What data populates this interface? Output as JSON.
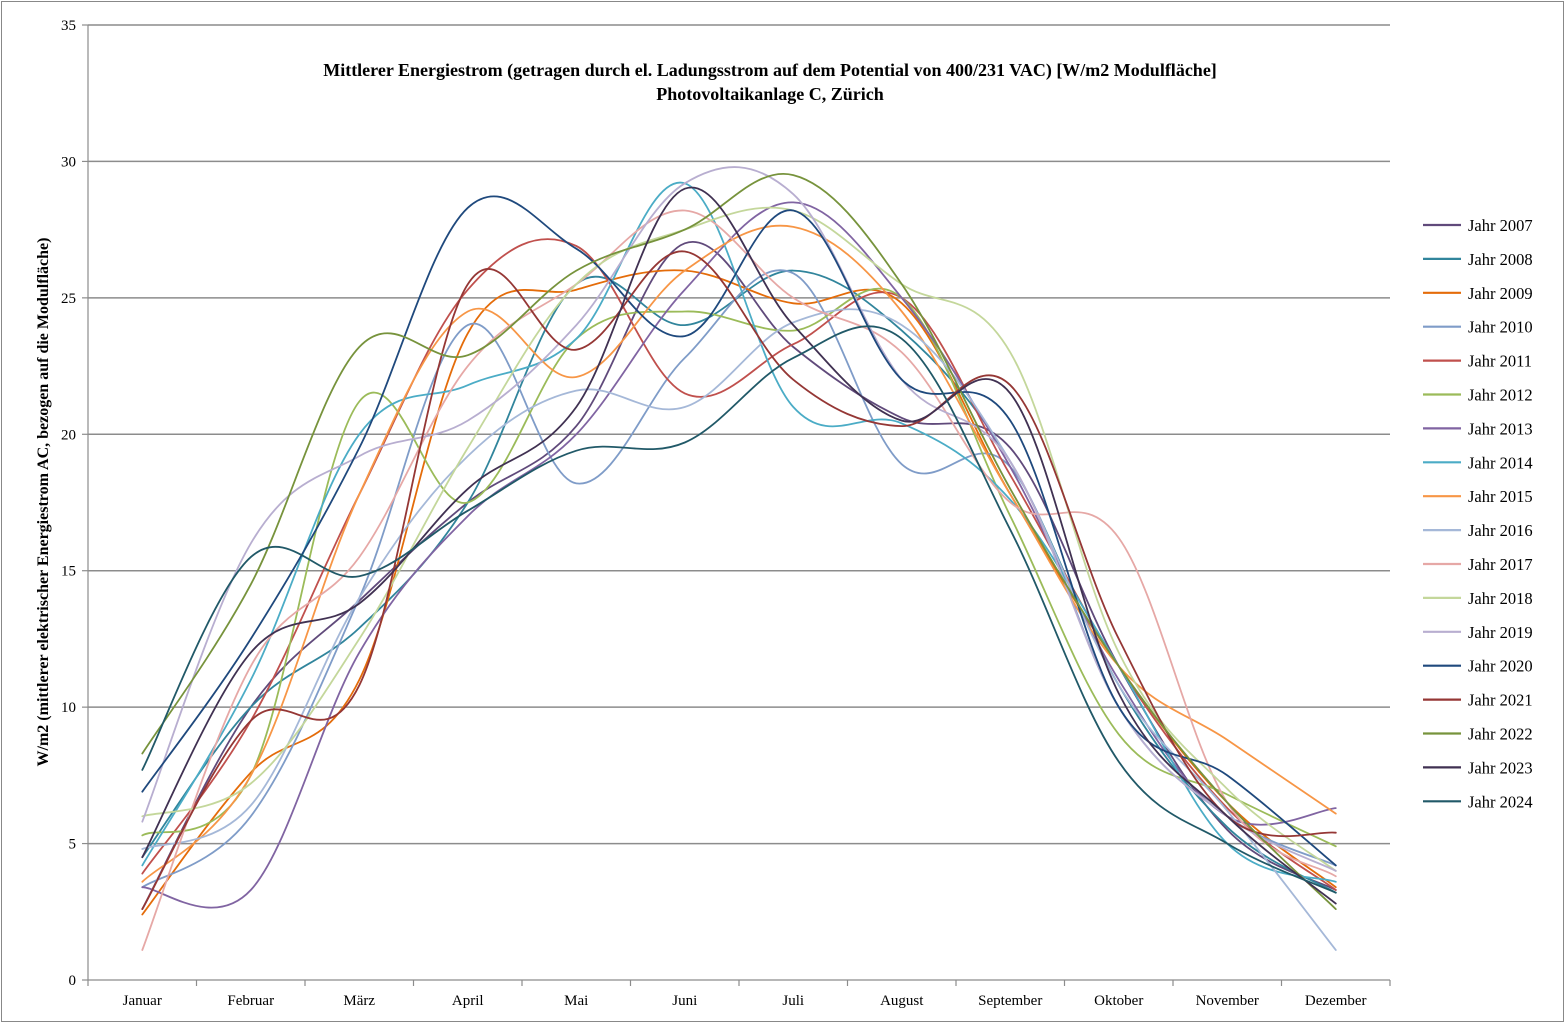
{
  "chart_data": {
    "type": "line",
    "title": "Mittlerer Energiestrom (getragen durch el. Ladungsstrom auf dem Potential von 400/231 VAC) [W/m2 Modulfläche]",
    "subtitle": "Photovoltaikanlage C, Zürich",
    "xlabel": "",
    "ylabel": "W/m2 (mittlerer elektrischer Energiestrom AC, bezogen auf die Modulfläche)",
    "ylim": [
      0,
      35
    ],
    "yticks": [
      "0",
      "5",
      "10",
      "15",
      "20",
      "25",
      "30",
      "35"
    ],
    "grid": true,
    "legend_position": "right",
    "categories": [
      "Januar",
      "Februar",
      "März",
      "April",
      "Mai",
      "Juni",
      "Juli",
      "August",
      "September",
      "Oktober",
      "November",
      "Dezember"
    ],
    "series": [
      {
        "name": "Jahr 2007",
        "color": "#604a7b",
        "values": [
          2.6,
          10.0,
          13.9,
          17.5,
          20.3,
          27.0,
          23.2,
          20.6,
          19.5,
          11.5,
          5.5,
          3.3
        ]
      },
      {
        "name": "Jahr 2008",
        "color": "#31859c",
        "values": [
          4.5,
          10.0,
          12.9,
          17.5,
          25.5,
          24.0,
          26.0,
          23.8,
          19.0,
          10.8,
          5.6,
          3.2
        ]
      },
      {
        "name": "Jahr 2009",
        "color": "#e46c0a",
        "values": [
          2.4,
          7.6,
          11.0,
          23.7,
          25.3,
          26.0,
          24.8,
          24.8,
          17.8,
          11.5,
          6.5,
          3.4
        ]
      },
      {
        "name": "Jahr 2010",
        "color": "#7f9cc8",
        "values": [
          3.4,
          6.0,
          14.0,
          24.0,
          18.2,
          22.8,
          25.9,
          18.9,
          18.8,
          10.0,
          6.0,
          4.2
        ]
      },
      {
        "name": "Jahr 2011",
        "color": "#c0504d",
        "values": [
          3.9,
          9.5,
          17.8,
          25.3,
          26.9,
          21.5,
          23.3,
          25.0,
          18.5,
          11.5,
          6.3,
          3.3
        ]
      },
      {
        "name": "Jahr 2012",
        "color": "#9bbb59",
        "values": [
          5.3,
          7.5,
          21.2,
          17.5,
          23.5,
          24.5,
          23.8,
          25.0,
          17.0,
          9.0,
          6.8,
          4.9
        ]
      },
      {
        "name": "Jahr 2013",
        "color": "#8064a2",
        "values": [
          3.4,
          3.3,
          12.0,
          17.0,
          20.0,
          25.3,
          28.5,
          25.0,
          18.8,
          11.0,
          6.0,
          6.3
        ]
      },
      {
        "name": "Jahr 2014",
        "color": "#4bacc6",
        "values": [
          4.2,
          11.0,
          20.0,
          21.8,
          23.5,
          29.2,
          21.0,
          20.4,
          17.6,
          11.5,
          5.0,
          3.6
        ]
      },
      {
        "name": "Jahr 2015",
        "color": "#f79646",
        "values": [
          3.6,
          7.5,
          17.8,
          24.5,
          22.1,
          26.0,
          27.6,
          24.5,
          17.8,
          11.5,
          8.8,
          6.1
        ]
      },
      {
        "name": "Jahr 2016",
        "color": "#a5b8d8",
        "values": [
          4.8,
          6.4,
          14.0,
          19.2,
          21.6,
          21.0,
          24.1,
          24.0,
          19.0,
          10.8,
          6.2,
          1.1
        ]
      },
      {
        "name": "Jahr 2017",
        "color": "#e6a8a6",
        "values": [
          1.1,
          11.5,
          15.5,
          22.5,
          25.5,
          28.2,
          25.0,
          23.0,
          17.5,
          16.2,
          6.5,
          3.8
        ]
      },
      {
        "name": "Jahr 2018",
        "color": "#c4d79b",
        "values": [
          6.0,
          7.2,
          12.5,
          19.5,
          25.5,
          27.5,
          28.2,
          25.5,
          23.0,
          12.0,
          7.0,
          4.0
        ]
      },
      {
        "name": "Jahr 2019",
        "color": "#b8aed0",
        "values": [
          5.8,
          16.0,
          19.2,
          20.5,
          24.0,
          29.2,
          28.8,
          22.0,
          19.0,
          10.0,
          6.0,
          4.0
        ]
      },
      {
        "name": "Jahr 2020",
        "color": "#1f497d",
        "values": [
          6.9,
          12.5,
          19.5,
          28.3,
          26.8,
          23.6,
          28.2,
          22.0,
          20.5,
          10.0,
          7.5,
          4.2
        ]
      },
      {
        "name": "Jahr 2021",
        "color": "#953735",
        "values": [
          2.6,
          9.5,
          10.8,
          25.5,
          23.1,
          26.7,
          22.0,
          20.3,
          21.8,
          12.5,
          6.0,
          5.4
        ]
      },
      {
        "name": "Jahr 2022",
        "color": "#77933c",
        "values": [
          8.3,
          14.5,
          23.2,
          22.9,
          26.0,
          27.5,
          29.5,
          25.5,
          18.0,
          11.5,
          6.5,
          2.6
        ]
      },
      {
        "name": "Jahr 2023",
        "color": "#403152",
        "values": [
          4.5,
          12.0,
          13.8,
          18.0,
          21.0,
          29.0,
          24.0,
          20.5,
          21.5,
          10.5,
          6.0,
          2.8
        ]
      },
      {
        "name": "Jahr 2024",
        "color": "#215968",
        "values": [
          7.7,
          15.5,
          14.8,
          17.2,
          19.4,
          19.7,
          22.8,
          23.5,
          16.5,
          8.0,
          5.0,
          3.2
        ]
      }
    ]
  }
}
